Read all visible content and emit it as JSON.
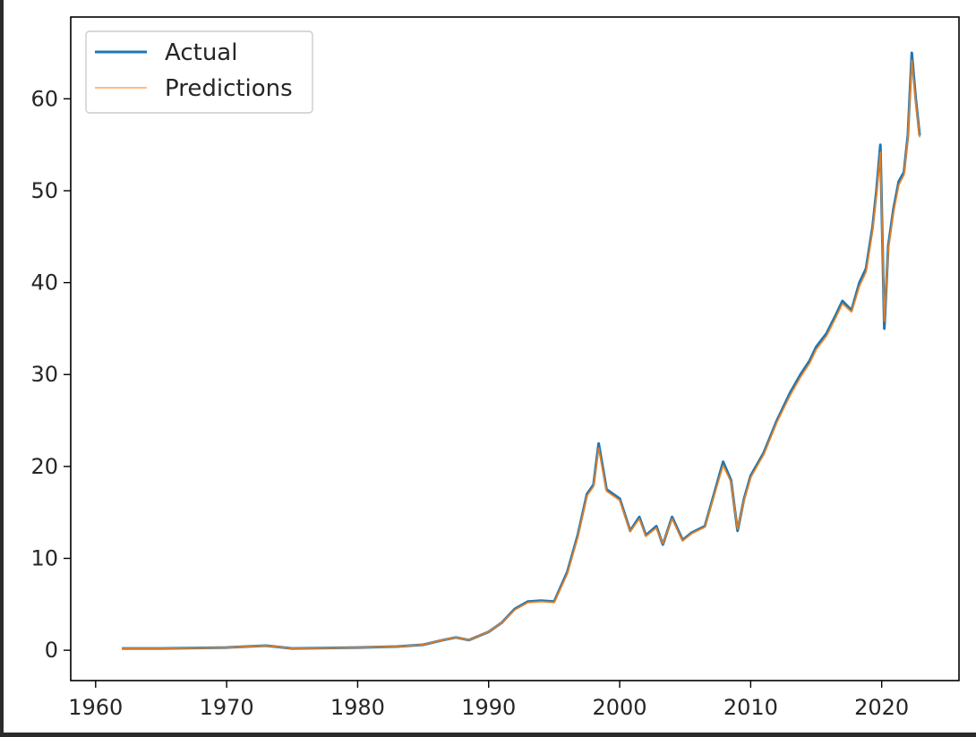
{
  "chart_data": {
    "type": "line",
    "title": "",
    "xlabel": "",
    "ylabel": "",
    "xlim": [
      1958.1,
      2025.9
    ],
    "ylim": [
      -3.3,
      68.9
    ],
    "x_ticks": [
      1960,
      1970,
      1980,
      1990,
      2000,
      2010,
      2020
    ],
    "y_ticks": [
      0,
      10,
      20,
      30,
      40,
      50,
      60
    ],
    "grid": false,
    "legend_position": "top-left",
    "legend": [
      {
        "label": "Actual",
        "color": "#1f77b4"
      },
      {
        "label": "Predictions",
        "color": "#ff7f0e"
      }
    ],
    "series": [
      {
        "name": "Actual",
        "color": "#1f77b4",
        "x": [
          1962.0,
          1965.0,
          1970.0,
          1973.0,
          1975.0,
          1980.0,
          1983.0,
          1985.0,
          1986.5,
          1987.5,
          1988.5,
          1990.0,
          1991.0,
          1992.0,
          1993.0,
          1994.0,
          1995.0,
          1996.0,
          1996.8,
          1997.5,
          1998.0,
          1998.4,
          1999.0,
          2000.0,
          2000.8,
          2001.5,
          2002.0,
          2002.8,
          2003.3,
          2004.0,
          2004.8,
          2005.5,
          2006.5,
          2007.3,
          2007.9,
          2008.5,
          2009.0,
          2009.5,
          2010.0,
          2011.0,
          2012.0,
          2013.0,
          2013.8,
          2014.5,
          2015.0,
          2015.8,
          2016.5,
          2017.0,
          2017.7,
          2018.3,
          2018.8,
          2019.3,
          2019.6,
          2019.9,
          2020.2,
          2020.5,
          2020.9,
          2021.3,
          2021.7,
          2022.0,
          2022.3,
          2022.6,
          2022.9
        ],
        "values": [
          0.2,
          0.2,
          0.3,
          0.5,
          0.2,
          0.3,
          0.4,
          0.6,
          1.1,
          1.4,
          1.1,
          2.0,
          3.0,
          4.5,
          5.3,
          5.4,
          5.3,
          8.5,
          12.5,
          17.0,
          18.0,
          22.5,
          17.5,
          16.5,
          13.0,
          14.5,
          12.5,
          13.5,
          11.5,
          14.5,
          12.0,
          12.8,
          13.5,
          17.5,
          20.5,
          18.5,
          13.0,
          16.5,
          19.0,
          21.5,
          25.0,
          28.0,
          30.0,
          31.5,
          33.0,
          34.5,
          36.5,
          38.0,
          37.0,
          40.0,
          41.5,
          46.0,
          50.0,
          55.0,
          35.0,
          44.0,
          48.0,
          51.0,
          52.0,
          56.0,
          65.0,
          60.0,
          56.0
        ]
      },
      {
        "name": "Predictions",
        "color": "#ff7f0e",
        "x": [
          1962.0,
          1965.0,
          1970.0,
          1973.0,
          1975.0,
          1980.0,
          1983.0,
          1985.0,
          1986.5,
          1987.5,
          1988.5,
          1990.0,
          1991.0,
          1992.0,
          1993.0,
          1994.0,
          1995.0,
          1996.0,
          1996.8,
          1997.5,
          1998.0,
          1998.4,
          1999.0,
          2000.0,
          2000.8,
          2001.5,
          2002.0,
          2002.8,
          2003.3,
          2004.0,
          2004.8,
          2005.5,
          2006.5,
          2007.3,
          2007.9,
          2008.5,
          2009.0,
          2009.5,
          2010.0,
          2011.0,
          2012.0,
          2013.0,
          2013.8,
          2014.5,
          2015.0,
          2015.8,
          2016.5,
          2017.0,
          2017.7,
          2018.3,
          2018.8,
          2019.3,
          2019.6,
          2019.9,
          2020.2,
          2020.5,
          2020.9,
          2021.3,
          2021.7,
          2022.0,
          2022.3,
          2022.6,
          2022.9
        ],
        "values": [
          0.2,
          0.2,
          0.3,
          0.5,
          0.2,
          0.3,
          0.4,
          0.6,
          1.1,
          1.4,
          1.1,
          2.0,
          3.0,
          4.4,
          5.2,
          5.3,
          5.2,
          8.3,
          12.3,
          16.8,
          17.8,
          22.0,
          17.3,
          16.3,
          12.9,
          14.3,
          12.4,
          13.3,
          11.6,
          14.3,
          11.9,
          12.7,
          13.4,
          17.3,
          20.1,
          18.3,
          13.2,
          16.3,
          18.8,
          21.3,
          24.8,
          27.7,
          29.7,
          31.2,
          32.7,
          34.2,
          36.2,
          37.7,
          36.8,
          39.6,
          41.1,
          45.6,
          49.5,
          54.2,
          35.8,
          43.6,
          47.6,
          50.6,
          51.7,
          55.6,
          64.2,
          59.6,
          55.8
        ]
      }
    ]
  }
}
